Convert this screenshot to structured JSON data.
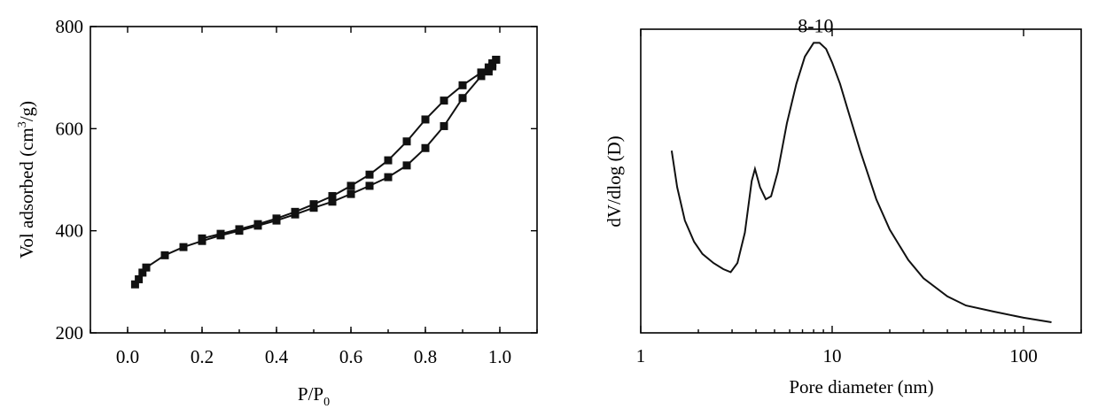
{
  "chart_data": [
    {
      "type": "line",
      "xlabel": "P/P",
      "xlabel_sub": "0",
      "ylabel_main": "Vol adsorbed (cm",
      "ylabel_sup": "3",
      "ylabel_end": "/g)",
      "xlim": [
        -0.1,
        1.1
      ],
      "ylim": [
        200,
        800
      ],
      "xticks": [
        0.0,
        0.2,
        0.4,
        0.6,
        0.8,
        1.0
      ],
      "xtick_labels": [
        "0.0",
        "0.2",
        "0.4",
        "0.6",
        "0.8",
        "1.0"
      ],
      "yticks": [
        200,
        400,
        600,
        800
      ],
      "ytick_labels": [
        "200",
        "400",
        "600",
        "800"
      ],
      "markers": "square",
      "series": [
        {
          "x": [
            0.02,
            0.03,
            0.04,
            0.05,
            0.1,
            0.15,
            0.2,
            0.25,
            0.3,
            0.35,
            0.4,
            0.45,
            0.5,
            0.55,
            0.6,
            0.65,
            0.7,
            0.75,
            0.8,
            0.85,
            0.9,
            0.95,
            0.97,
            0.98,
            0.99
          ],
          "y": [
            295,
            305,
            318,
            328,
            352,
            368,
            380,
            391,
            400,
            410,
            420,
            432,
            445,
            457,
            472,
            488,
            505,
            528,
            562,
            605,
            660,
            703,
            712,
            722,
            735
          ]
        },
        {
          "x": [
            0.99,
            0.98,
            0.97,
            0.95,
            0.9,
            0.85,
            0.8,
            0.75,
            0.7,
            0.65,
            0.6,
            0.55,
            0.5,
            0.45,
            0.4,
            0.35,
            0.3,
            0.25,
            0.2
          ],
          "y": [
            735,
            728,
            720,
            710,
            685,
            655,
            618,
            575,
            538,
            510,
            488,
            468,
            452,
            437,
            424,
            413,
            403,
            394,
            385
          ]
        }
      ]
    },
    {
      "type": "line",
      "xlabel": "Pore diameter (nm)",
      "ylabel": "dV/dlog (D)",
      "xscale": "log",
      "xlim": [
        1,
        200
      ],
      "ylim": [
        0,
        1
      ],
      "xticks": [
        1,
        10,
        100
      ],
      "xtick_labels": [
        "1",
        "10",
        "100"
      ],
      "annotation": {
        "text": "8-10",
        "x": 8.2,
        "y": 0.96
      },
      "series": [
        {
          "x": [
            1.45,
            1.55,
            1.7,
            1.9,
            2.1,
            2.4,
            2.7,
            2.95,
            3.2,
            3.5,
            3.8,
            3.95,
            4.2,
            4.5,
            4.8,
            5.2,
            5.8,
            6.5,
            7.2,
            8.0,
            8.6,
            9.3,
            10,
            11,
            12,
            14,
            17,
            20,
            25,
            30,
            40,
            50,
            70,
            100,
            140
          ],
          "y": [
            0.6,
            0.48,
            0.37,
            0.3,
            0.26,
            0.23,
            0.21,
            0.2,
            0.23,
            0.33,
            0.5,
            0.54,
            0.48,
            0.44,
            0.45,
            0.53,
            0.69,
            0.82,
            0.91,
            0.955,
            0.955,
            0.935,
            0.89,
            0.82,
            0.74,
            0.6,
            0.44,
            0.34,
            0.24,
            0.18,
            0.12,
            0.09,
            0.07,
            0.05,
            0.035
          ]
        }
      ]
    }
  ]
}
